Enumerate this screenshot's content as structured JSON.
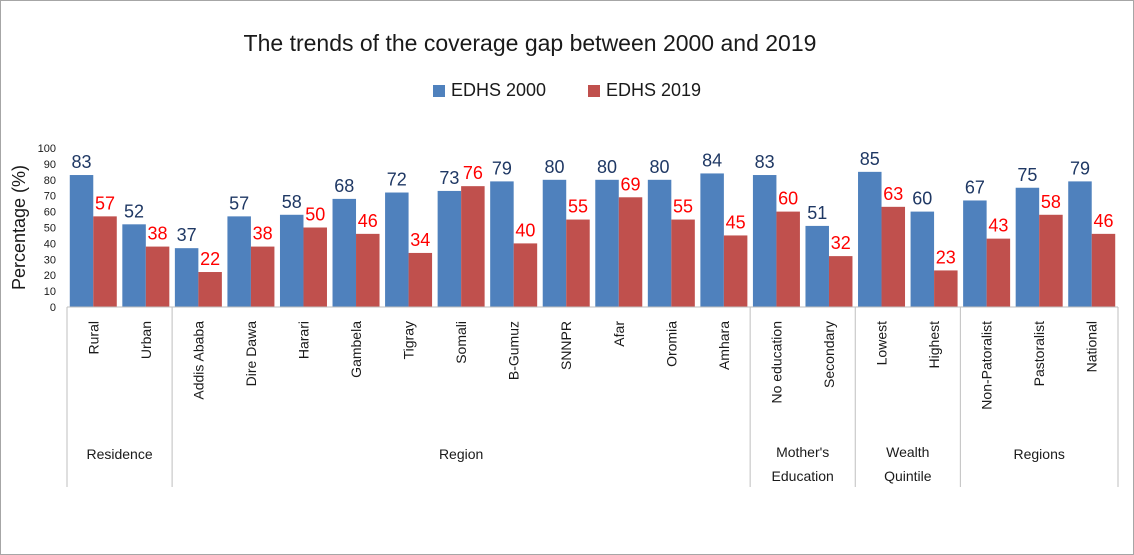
{
  "chart_data": {
    "type": "bar",
    "title": "The trends of the coverage gap between 2000 and 2019",
    "ylabel": "Percentage (%)",
    "xlabel": "",
    "ylim": [
      0,
      100
    ],
    "yticks": [
      0,
      10,
      20,
      30,
      40,
      50,
      60,
      70,
      80,
      90,
      100
    ],
    "grid": false,
    "legend_position": "top-center",
    "categories": [
      "Rural",
      "Urban",
      "Addis Ababa",
      "Dire Dawa",
      "Harari",
      "Gambela",
      "Tigray",
      "Somali",
      "B-Gumuz",
      "SNNPR",
      "Afar",
      "Oromia",
      "Amhara",
      "No education",
      "Secondary",
      "Lowest",
      "Highest",
      "Non-Patoralist",
      "Pastoralist",
      "National"
    ],
    "groups": [
      {
        "label": "Residence",
        "start": 0,
        "end": 1
      },
      {
        "label": "Region",
        "start": 2,
        "end": 12
      },
      {
        "label": "Mother's Education",
        "start": 13,
        "end": 14
      },
      {
        "label": "Wealth Quintile",
        "start": 15,
        "end": 16
      },
      {
        "label": "Regions",
        "start": 17,
        "end": 19
      }
    ],
    "series": [
      {
        "name": "EDHS 2000",
        "color": "#4f81bd",
        "label_color": "#1f3864",
        "values": [
          83,
          52,
          37,
          57,
          58,
          68,
          72,
          73,
          79,
          80,
          80,
          80,
          84,
          83,
          51,
          85,
          60,
          67,
          75,
          79
        ]
      },
      {
        "name": "EDHS 2019",
        "color": "#c0504d",
        "label_color": "#ff0000",
        "values": [
          57,
          38,
          22,
          38,
          50,
          46,
          34,
          76,
          40,
          55,
          69,
          55,
          45,
          60,
          32,
          63,
          23,
          43,
          58,
          46
        ]
      }
    ]
  }
}
